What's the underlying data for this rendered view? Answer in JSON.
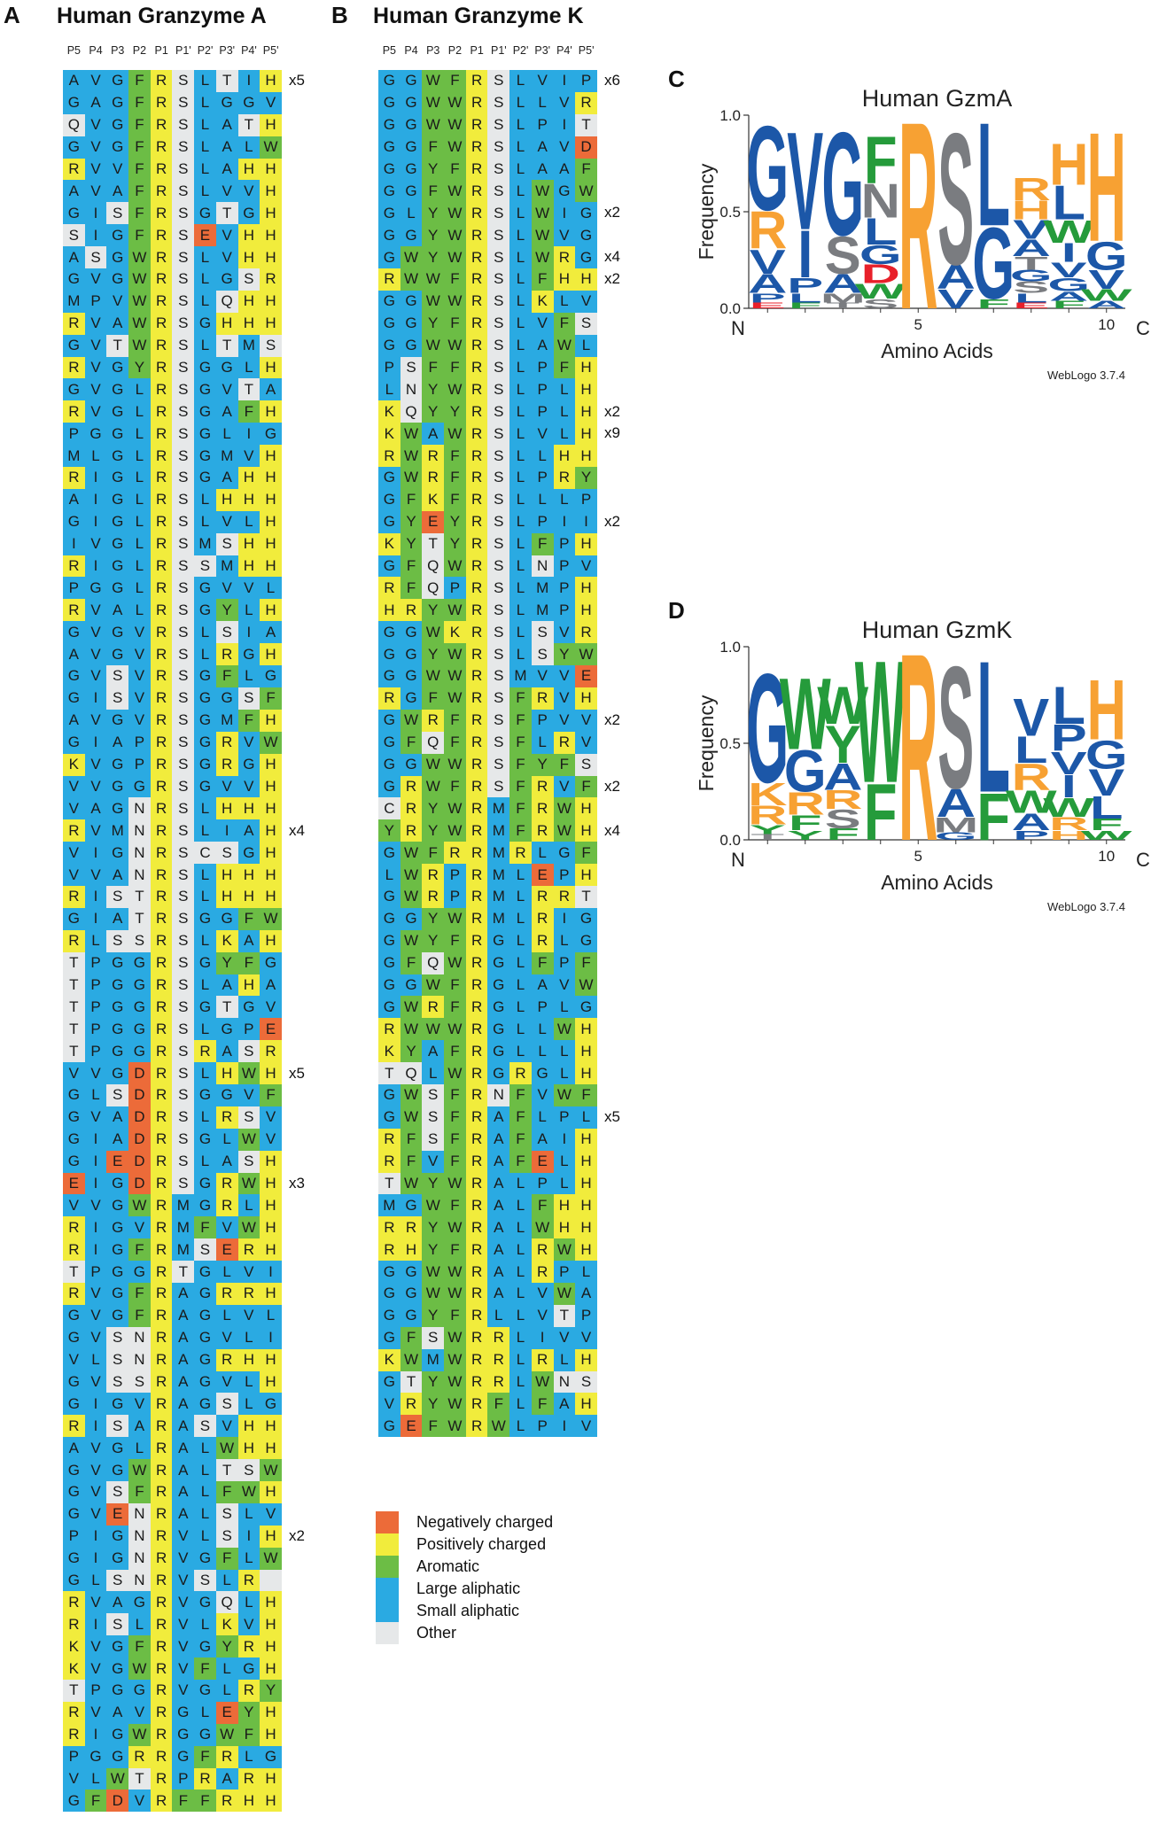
{
  "colors": {
    "negative": "#ec6b39",
    "positive": "#f1ec3c",
    "aromatic": "#6cbd45",
    "large_aliphatic": "#2aaae2",
    "small_aliphatic": "#2aaae2",
    "other": "#e6e8e9",
    "logo_blue": "#1c57a8",
    "logo_orange": "#f7a133",
    "logo_green": "#259b3b",
    "logo_gray": "#7a7c80",
    "logo_red": "#e8202a"
  },
  "panel_a": {
    "letter": "A",
    "title": "Human Granzyme A",
    "positions": [
      "P5",
      "P4",
      "P3",
      "P2",
      "P1",
      "P1'",
      "P2'",
      "P3'",
      "P4'",
      "P5'"
    ],
    "rows": [
      "AVGFRSLTIH",
      "GAGFRSLGGV",
      "QVGFRSLATH",
      "GVGFRSLALW",
      "RVVFRSLAHH",
      "AVAFRSLVVH",
      "GISFRSGTGH",
      "SIGFRSEVHH",
      "ASGWRSLVHH",
      "GVGWRSLGSR",
      "MPVWRSLQHH",
      "RVAWRSGHHH",
      "GVTWRSLTMS",
      "RVGYRSGGLH",
      "GVGLRSGVTA",
      "RVGLRSGAFH",
      "PGGLRSGLIG",
      "MLGLRSGMVH",
      "RIGLRSGAHH",
      "AIGLRSLHHH",
      "GIGLRSLVLH",
      "IVGLRSMSHH",
      "RIGLRSSMHH",
      "PGGLRSGVVL",
      "RVALRSGYLH",
      "GVGVRSLSIA",
      "AVGVRSLRGH",
      "GVSVRSGFLG",
      "GISVRSGGSF",
      "AVGVRSGMFH",
      "GIAPRSGRVW",
      "KVGPRSGRGH",
      "VVGGRSGVVH",
      "VAGNRSLHHH",
      "RVMNRSLIAH",
      "VIGNRSCSGH",
      "VVANRSLHHH",
      "RISTRSLHHH",
      "GIATRSGGFW",
      "RLSSRSLKAH",
      "TPGGRSGYFG",
      "TPGGRSLAHA",
      "TPGGRSGTGV",
      "TPGGRSLGPE",
      "TPGGRSRASR",
      "VVGDRSLHWH",
      "GLSDRSGGVF",
      "GVADRSLRSV",
      "GIADRSGLWV",
      "GIEDRSLASH",
      "EIGDRSGRWH",
      "VVGWRMGRLH",
      "RIGVRMFVWH",
      "RIGFRMSERH",
      "TPGGRTGLVI",
      "RVGFRAGRRH",
      "GVGFRAGLVL",
      "GVSNRAGVLI",
      "VLSNRAGRHH",
      "GVSSRAGVLH",
      "GIGVRAGSLG",
      "RISARASVHH",
      "AVGLRALWHH",
      "GVGWRALTSW",
      "GVSFRALFWH",
      "GVENRALSLV",
      "PIGNRVLSIH",
      "GIGNRVGFLW",
      "GLSNRVSLR",
      "RVAGRVGQLH",
      "RISLRVLKVH",
      "KVGFRVGYRH",
      "KVGWRVFLGH",
      "TPGGRVGLRY",
      "RVAVRGLEYH",
      "RIGWRGGWFH",
      "PGGRRGFRLG",
      "VLWTRPRARH",
      "GFDVRFFRHH"
    ],
    "multiplicity": [
      {
        "row": 0,
        "label": "x5"
      },
      {
        "row": 34,
        "label": "x4"
      },
      {
        "row": 45,
        "label": "x5"
      },
      {
        "row": 50,
        "label": "x3"
      },
      {
        "row": 66,
        "label": "x2"
      }
    ]
  },
  "panel_b": {
    "letter": "B",
    "title": "Human Granzyme K",
    "positions": [
      "P5",
      "P4",
      "P3",
      "P2",
      "P1",
      "P1'",
      "P2'",
      "P3'",
      "P4'",
      "P5'"
    ],
    "rows": [
      "GGWFRSLVIP",
      "GGWWRSLLVR",
      "GGWWRSLPIT",
      "GGFWRSLAVD",
      "GGYFRSLAAF",
      "GGFWRSLWGW",
      "GLYWRSLWIG",
      "GGYWRSLWVG",
      "GWYWRSLWRG",
      "RWWFRSLFHH",
      "GGWWRSLKLV",
      "GGYFRSLVFS",
      "GGWWRSLAWL",
      "PSFFRSLPFH",
      "LNYWRSLPLH",
      "KQYYRSLPLH",
      "KWAWRSLVLH",
      "RWRFRSLLHH",
      "GWRFRSLPRY",
      "GFKFRSLLLP",
      "GYEYRSLPII",
      "KYTYRSLFPH",
      "GFQWRSLNPV",
      "RFQPRSLMPH",
      "HRYWRSLMPH",
      "GGWKRSLSVR",
      "GGYWRSLSYW",
      "GGWWRSMVVE",
      "RGFWRSFRVH",
      "GWRFRSFPVV",
      "GFQFRSFLRV",
      "GGWWRSFYFS",
      "GRWFRSFRVF",
      "CRYWRMFRWH",
      "YRYWRMFRWH",
      "GWFRRMRLGF",
      "LWRPRMLEPH",
      "GWRPRMLRRT",
      "GGYWRMLRIG",
      "GWYFRGLRLG",
      "GFQWRGLFPF",
      "GGWFRGLAVW",
      "GWRFRGLPLG",
      "RWWWRGLLWH",
      "KYAFRGLLLH",
      "TQLWRGRGLH",
      "GWSFRNFVWF",
      "GWSFRAFLPL",
      "RFSFRAFAIH",
      "RFVFRAFELH",
      "TWYWRALPLH",
      "MGWFRALFHH",
      "RRYWRALWHH",
      "RHYFRALRWH",
      "GGWWRALRPL",
      "GGWWRALVWA",
      "GGYFRLLVTP",
      "GFSWRRLIVV",
      "KWMWRRLRLH",
      "GTYWRRLWNS",
      "VRYWRFLFAH",
      "GEFWRWLPIV"
    ],
    "multiplicity": [
      {
        "row": 0,
        "label": "x6"
      },
      {
        "row": 6,
        "label": "x2"
      },
      {
        "row": 8,
        "label": "x4"
      },
      {
        "row": 9,
        "label": "x2"
      },
      {
        "row": 15,
        "label": "x2"
      },
      {
        "row": 16,
        "label": "x9"
      },
      {
        "row": 20,
        "label": "x2"
      },
      {
        "row": 29,
        "label": "x2"
      },
      {
        "row": 32,
        "label": "x2"
      },
      {
        "row": 34,
        "label": "x4"
      },
      {
        "row": 47,
        "label": "x5"
      }
    ]
  },
  "legend": [
    {
      "label": "Negatively charged",
      "color": "#ec6b39"
    },
    {
      "label": "Positively charged",
      "color": "#f1ec3c"
    },
    {
      "label": "Aromatic",
      "color": "#6cbd45"
    },
    {
      "label": "Large aliphatic",
      "color": "#2aaae2"
    },
    {
      "label": "Small aliphatic",
      "color": "#2aaae2"
    },
    {
      "label": "Other",
      "color": "#e6e8e9"
    }
  ],
  "logo_c": {
    "letter": "C",
    "title": "Human GzmA",
    "ylabel": "Frequency",
    "xlabel": "Amino Acids",
    "n_label": "N",
    "c_label": "C",
    "credit": "WebLogo 3.7.4",
    "y_ticks": [
      "1.0",
      "0.5",
      "0.0"
    ],
    "x_ticks": [
      "5",
      "10"
    ],
    "stacks": [
      [
        [
          "G",
          0.45
        ],
        [
          "R",
          0.2
        ],
        [
          "V",
          0.13
        ],
        [
          "A",
          0.1
        ],
        [
          "P",
          0.05
        ],
        [
          "E",
          0.03
        ]
      ],
      [
        [
          "V",
          0.52
        ],
        [
          "I",
          0.25
        ],
        [
          "P",
          0.08
        ],
        [
          "L",
          0.05
        ],
        [
          "F",
          0.03
        ]
      ],
      [
        [
          "G",
          0.55
        ],
        [
          "S",
          0.2
        ],
        [
          "A",
          0.1
        ],
        [
          "M",
          0.05
        ],
        [
          "T",
          0.03
        ]
      ],
      [
        [
          "F",
          0.25
        ],
        [
          "N",
          0.18
        ],
        [
          "L",
          0.14
        ],
        [
          "D",
          0.1
        ],
        [
          "G",
          0.1
        ],
        [
          "W",
          0.08
        ],
        [
          "S",
          0.05
        ]
      ],
      [
        [
          "R",
          1.0
        ]
      ],
      [
        [
          "S",
          0.7
        ],
        [
          "A",
          0.13
        ],
        [
          "V",
          0.1
        ]
      ],
      [
        [
          "L",
          0.55
        ],
        [
          "G",
          0.38
        ],
        [
          "F",
          0.05
        ]
      ],
      [
        [
          "R",
          0.12
        ],
        [
          "V",
          0.1
        ],
        [
          "H",
          0.1
        ],
        [
          "A",
          0.09
        ],
        [
          "T",
          0.07
        ],
        [
          "S",
          0.06
        ],
        [
          "G",
          0.06
        ],
        [
          "L",
          0.05
        ],
        [
          "E",
          0.03
        ]
      ],
      [
        [
          "H",
          0.22
        ],
        [
          "L",
          0.18
        ],
        [
          "W",
          0.12
        ],
        [
          "I",
          0.1
        ],
        [
          "V",
          0.08
        ],
        [
          "G",
          0.07
        ],
        [
          "A",
          0.05
        ],
        [
          "F",
          0.04
        ]
      ],
      [
        [
          "H",
          0.58
        ],
        [
          "G",
          0.15
        ],
        [
          "V",
          0.1
        ],
        [
          "W",
          0.06
        ],
        [
          "A",
          0.04
        ]
      ]
    ]
  },
  "logo_d": {
    "letter": "D",
    "title": "Human GzmK",
    "ylabel": "Frequency",
    "xlabel": "Amino Acids",
    "n_label": "N",
    "c_label": "C",
    "credit": "WebLogo 3.7.4",
    "y_ticks": [
      "1.0",
      "0.5",
      "0.0"
    ],
    "x_ticks": [
      "5",
      "10"
    ],
    "stacks": [
      [
        [
          "G",
          0.58
        ],
        [
          "K",
          0.12
        ],
        [
          "R",
          0.1
        ],
        [
          "Y",
          0.05
        ],
        [
          "T",
          0.03
        ]
      ],
      [
        [
          "W",
          0.38
        ],
        [
          "G",
          0.22
        ],
        [
          "R",
          0.12
        ],
        [
          "F",
          0.08
        ],
        [
          "Y",
          0.05
        ]
      ],
      [
        [
          "Y",
          0.2
        ],
        [
          "W",
          0.2
        ],
        [
          "A",
          0.14
        ],
        [
          "S",
          0.1
        ],
        [
          "R",
          0.1
        ],
        [
          "F",
          0.06
        ]
      ],
      [
        [
          "W",
          0.65
        ],
        [
          "F",
          0.3
        ]
      ],
      [
        [
          "R",
          1.0
        ]
      ],
      [
        [
          "S",
          0.65
        ],
        [
          "A",
          0.15
        ],
        [
          "M",
          0.08
        ],
        [
          "G",
          0.04
        ]
      ],
      [
        [
          "L",
          0.7
        ],
        [
          "F",
          0.25
        ]
      ],
      [
        [
          "V",
          0.2
        ],
        [
          "R",
          0.14
        ],
        [
          "L",
          0.14
        ],
        [
          "W",
          0.12
        ],
        [
          "A",
          0.09
        ],
        [
          "P",
          0.05
        ]
      ],
      [
        [
          "L",
          0.2
        ],
        [
          "I",
          0.12
        ],
        [
          "P",
          0.14
        ],
        [
          "V",
          0.12
        ],
        [
          "W",
          0.1
        ],
        [
          "R",
          0.07
        ],
        [
          "H",
          0.05
        ]
      ],
      [
        [
          "H",
          0.32
        ],
        [
          "G",
          0.15
        ],
        [
          "V",
          0.14
        ],
        [
          "L",
          0.12
        ],
        [
          "F",
          0.06
        ],
        [
          "W",
          0.05
        ]
      ]
    ]
  }
}
